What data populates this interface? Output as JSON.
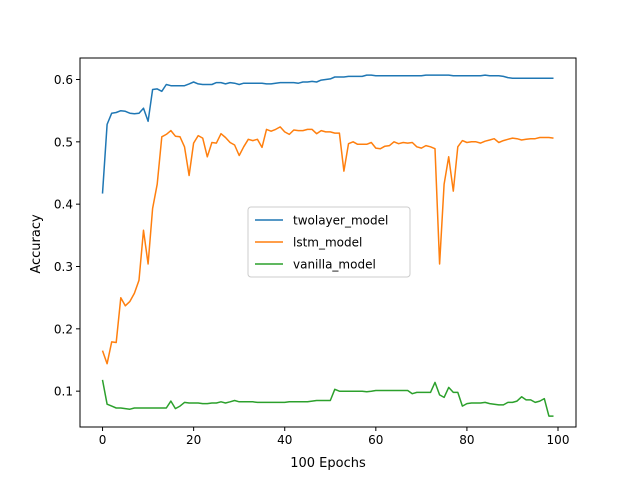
{
  "chart_data": {
    "type": "line",
    "title": "",
    "xlabel": "100 Epochs",
    "ylabel": "Accuracy",
    "xlim": [
      -4.95,
      103.95
    ],
    "ylim": [
      0.0425,
      0.6345
    ],
    "xticks": [
      0,
      20,
      40,
      60,
      80,
      100
    ],
    "yticks": [
      0.1,
      0.2,
      0.3,
      0.4,
      0.5,
      0.6
    ],
    "xtick_labels": [
      "0",
      "20",
      "40",
      "60",
      "80",
      "100"
    ],
    "ytick_labels": [
      "0.1",
      "0.2",
      "0.3",
      "0.4",
      "0.5",
      "0.6"
    ],
    "grid": false,
    "legend_position": "center",
    "x": [
      0,
      1,
      2,
      3,
      4,
      5,
      6,
      7,
      8,
      9,
      10,
      11,
      12,
      13,
      14,
      15,
      16,
      17,
      18,
      19,
      20,
      21,
      22,
      23,
      24,
      25,
      26,
      27,
      28,
      29,
      30,
      31,
      32,
      33,
      34,
      35,
      36,
      37,
      38,
      39,
      40,
      41,
      42,
      43,
      44,
      45,
      46,
      47,
      48,
      49,
      50,
      51,
      52,
      53,
      54,
      55,
      56,
      57,
      58,
      59,
      60,
      61,
      62,
      63,
      64,
      65,
      66,
      67,
      68,
      69,
      70,
      71,
      72,
      73,
      74,
      75,
      76,
      77,
      78,
      79,
      80,
      81,
      82,
      83,
      84,
      85,
      86,
      87,
      88,
      89,
      90,
      91,
      92,
      93,
      94,
      95,
      96,
      97,
      98,
      99
    ],
    "series": [
      {
        "name": "twolayer_model",
        "color": "#1f77b4",
        "values": [
          0.417,
          0.528,
          0.546,
          0.547,
          0.55,
          0.549,
          0.546,
          0.545,
          0.546,
          0.554,
          0.533,
          0.584,
          0.585,
          0.581,
          0.592,
          0.59,
          0.59,
          0.59,
          0.59,
          0.593,
          0.596,
          0.593,
          0.592,
          0.592,
          0.592,
          0.595,
          0.595,
          0.593,
          0.595,
          0.594,
          0.592,
          0.594,
          0.594,
          0.594,
          0.594,
          0.594,
          0.593,
          0.593,
          0.594,
          0.595,
          0.595,
          0.595,
          0.595,
          0.594,
          0.596,
          0.596,
          0.597,
          0.596,
          0.599,
          0.6,
          0.601,
          0.604,
          0.604,
          0.604,
          0.605,
          0.605,
          0.605,
          0.605,
          0.607,
          0.607,
          0.606,
          0.606,
          0.606,
          0.606,
          0.606,
          0.606,
          0.606,
          0.606,
          0.606,
          0.606,
          0.606,
          0.607,
          0.607,
          0.607,
          0.607,
          0.607,
          0.607,
          0.606,
          0.606,
          0.606,
          0.606,
          0.606,
          0.606,
          0.606,
          0.607,
          0.606,
          0.606,
          0.606,
          0.605,
          0.603,
          0.602,
          0.602,
          0.602,
          0.602,
          0.602,
          0.602,
          0.602,
          0.602,
          0.602,
          0.602
        ]
      },
      {
        "name": "lstm_model",
        "color": "#ff7f0e",
        "values": [
          0.165,
          0.144,
          0.179,
          0.178,
          0.25,
          0.237,
          0.244,
          0.257,
          0.278,
          0.358,
          0.304,
          0.393,
          0.432,
          0.508,
          0.512,
          0.518,
          0.509,
          0.508,
          0.492,
          0.446,
          0.498,
          0.51,
          0.506,
          0.476,
          0.499,
          0.498,
          0.513,
          0.507,
          0.499,
          0.495,
          0.478,
          0.492,
          0.504,
          0.502,
          0.504,
          0.491,
          0.52,
          0.517,
          0.52,
          0.524,
          0.516,
          0.512,
          0.519,
          0.518,
          0.518,
          0.52,
          0.52,
          0.513,
          0.518,
          0.516,
          0.516,
          0.514,
          0.514,
          0.453,
          0.497,
          0.5,
          0.496,
          0.496,
          0.496,
          0.499,
          0.49,
          0.489,
          0.493,
          0.494,
          0.5,
          0.497,
          0.499,
          0.498,
          0.499,
          0.492,
          0.49,
          0.494,
          0.492,
          0.489,
          0.304,
          0.432,
          0.476,
          0.421,
          0.492,
          0.502,
          0.499,
          0.5,
          0.5,
          0.498,
          0.501,
          0.503,
          0.505,
          0.499,
          0.502,
          0.504,
          0.506,
          0.505,
          0.503,
          0.504,
          0.505,
          0.505,
          0.507,
          0.507,
          0.507,
          0.506
        ]
      },
      {
        "name": "vanilla_model",
        "color": "#2ca02c",
        "values": [
          0.118,
          0.079,
          0.076,
          0.073,
          0.073,
          0.072,
          0.071,
          0.073,
          0.073,
          0.073,
          0.073,
          0.073,
          0.073,
          0.073,
          0.073,
          0.084,
          0.072,
          0.076,
          0.082,
          0.081,
          0.081,
          0.081,
          0.08,
          0.08,
          0.081,
          0.081,
          0.083,
          0.081,
          0.083,
          0.085,
          0.083,
          0.083,
          0.083,
          0.083,
          0.082,
          0.082,
          0.082,
          0.082,
          0.082,
          0.082,
          0.082,
          0.083,
          0.083,
          0.083,
          0.083,
          0.083,
          0.084,
          0.085,
          0.085,
          0.085,
          0.085,
          0.103,
          0.1,
          0.1,
          0.1,
          0.1,
          0.1,
          0.1,
          0.099,
          0.1,
          0.101,
          0.101,
          0.101,
          0.101,
          0.101,
          0.101,
          0.101,
          0.101,
          0.096,
          0.098,
          0.098,
          0.098,
          0.098,
          0.114,
          0.094,
          0.09,
          0.106,
          0.098,
          0.098,
          0.076,
          0.08,
          0.081,
          0.081,
          0.081,
          0.082,
          0.08,
          0.079,
          0.078,
          0.078,
          0.082,
          0.082,
          0.084,
          0.091,
          0.086,
          0.086,
          0.082,
          0.084,
          0.088,
          0.06,
          0.06
        ]
      }
    ]
  }
}
